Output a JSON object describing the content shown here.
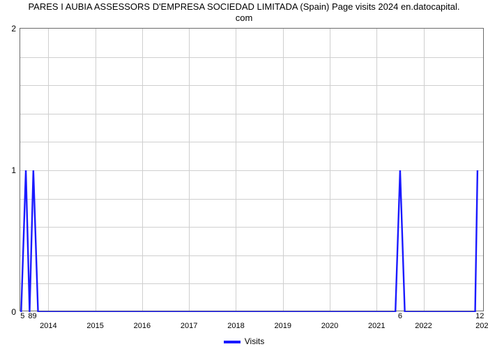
{
  "title": {
    "line1": "PARES I AUBIA ASSESSORS D'EMPRESA SOCIEDAD LIMITADA (Spain) Page visits 2024 en.datocapital.",
    "line2": "com",
    "fontsize": 13,
    "color": "#000000"
  },
  "chart": {
    "type": "line",
    "background_color": "#ffffff",
    "border_color": "#6b6b6b",
    "grid_color": "#cfcfcf",
    "line_color": "#1a1aff",
    "line_width": 2.4,
    "y": {
      "min": 0,
      "max": 2,
      "ticks": [
        0,
        1,
        2
      ],
      "minor_tick_count": 4,
      "label_fontsize": 12
    },
    "x": {
      "min": 2013.4,
      "max": 2023.3,
      "year_ticks": [
        2014,
        2015,
        2016,
        2017,
        2018,
        2019,
        2020,
        2021,
        2022
      ],
      "year_tick_fontsize": 11,
      "right_edge_label": "202"
    },
    "series": {
      "name": "Visits",
      "points": [
        {
          "x": 2013.42,
          "y": 0
        },
        {
          "x": 2013.52,
          "y": 1
        },
        {
          "x": 2013.6,
          "y": 0
        },
        {
          "x": 2013.68,
          "y": 1
        },
        {
          "x": 2013.78,
          "y": 0
        },
        {
          "x": 2021.4,
          "y": 0
        },
        {
          "x": 2021.5,
          "y": 1
        },
        {
          "x": 2021.6,
          "y": 0
        },
        {
          "x": 2023.1,
          "y": 0
        },
        {
          "x": 2023.15,
          "y": 1
        }
      ],
      "data_labels": [
        {
          "x": 2013.45,
          "y": 0,
          "text": "5"
        },
        {
          "x": 2013.66,
          "y": 0,
          "text": "89"
        },
        {
          "x": 2021.5,
          "y": 0,
          "text": "6"
        },
        {
          "x": 2023.2,
          "y": 0,
          "text": "12"
        }
      ]
    }
  },
  "legend": {
    "label": "Visits",
    "swatch_color": "#1a1aff",
    "fontsize": 12
  }
}
